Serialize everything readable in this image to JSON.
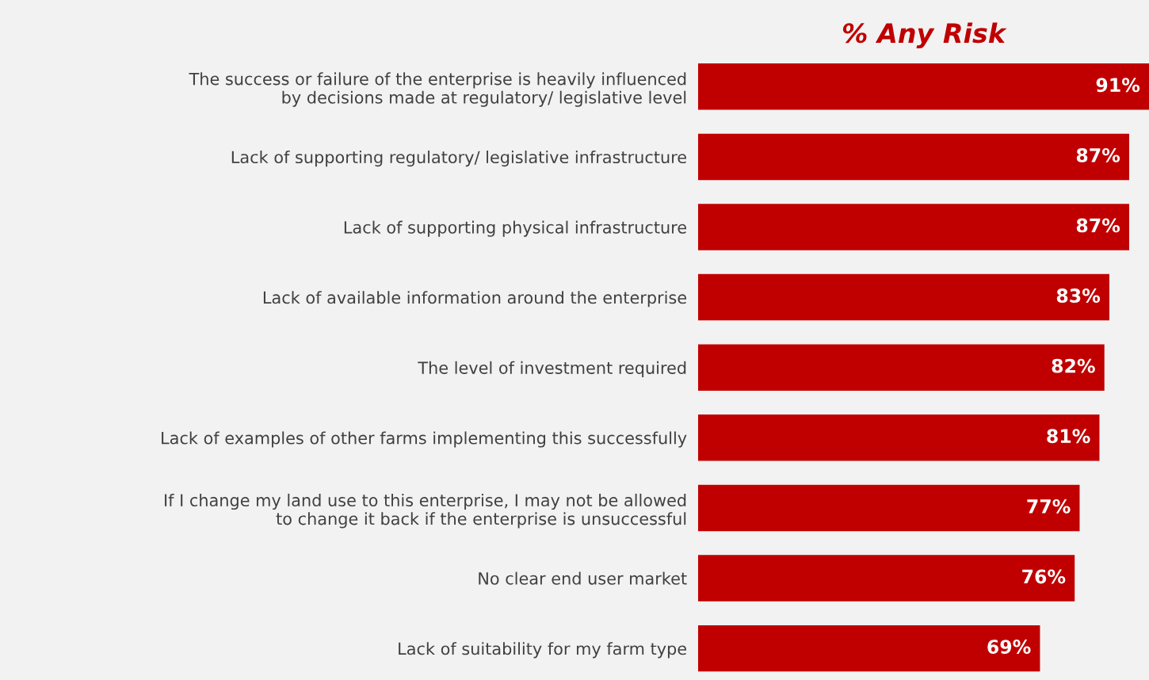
{
  "chart_data": {
    "type": "bar",
    "orientation": "horizontal",
    "title": "% Any Risk",
    "categories": [
      "The success or failure of the enterprise is heavily influenced\nby decisions made at regulatory/ legislative level",
      "Lack of supporting regulatory/ legislative infrastructure",
      "Lack of supporting physical infrastructure",
      "Lack of available information around the enterprise",
      "The level of investment required",
      "Lack of examples of other farms implementing this successfully",
      "If I change my land use to this enterprise, I may not be allowed\nto change it back if the enterprise is unsuccessful",
      "No clear end user market",
      "Lack of suitability for my farm type"
    ],
    "values": [
      91,
      87,
      87,
      83,
      82,
      81,
      77,
      76,
      69
    ],
    "value_labels": [
      "91%",
      "87%",
      "87%",
      "83%",
      "82%",
      "81%",
      "77%",
      "76%",
      "69%"
    ],
    "color": "#c00000",
    "grid": false,
    "legend": false,
    "tick_labels": "y"
  }
}
